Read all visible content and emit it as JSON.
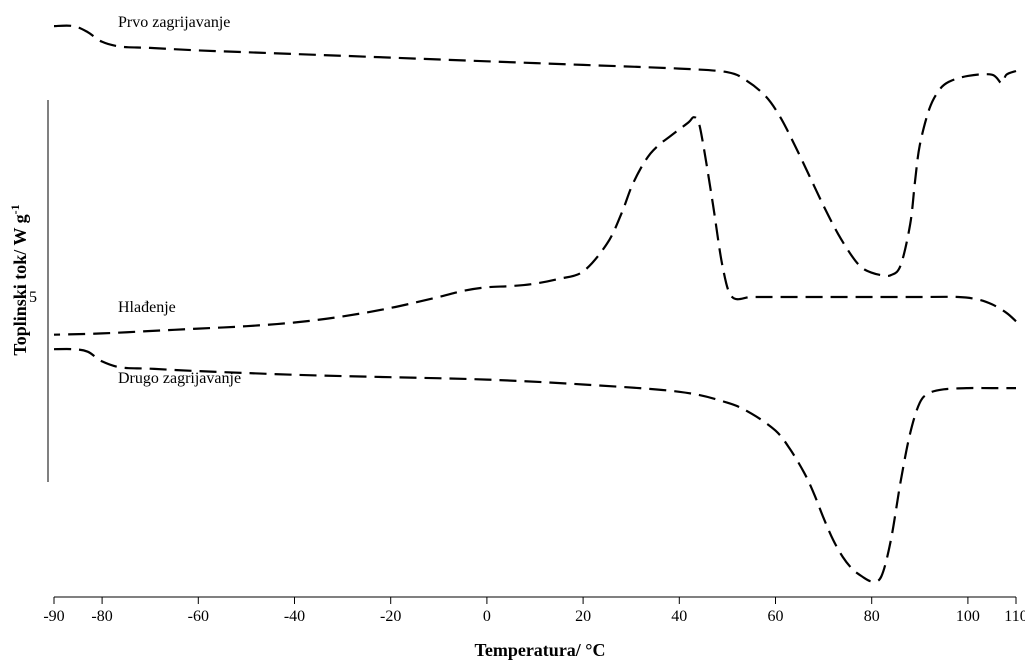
{
  "chart_data": {
    "type": "line",
    "xlabel": "Temperatura/ °C",
    "ylabel": "Toplinski tok/ W g",
    "ylabel_superscript": "-1",
    "xlim": [
      -90,
      110
    ],
    "xticks": [
      -90,
      -80,
      -60,
      -40,
      -20,
      0,
      20,
      40,
      60,
      80,
      100,
      110
    ],
    "scale_bar_label": "5",
    "line_style": "dashed",
    "series": [
      {
        "name": "Prvo zagrijavanje",
        "x": [
          -90,
          -86,
          -83,
          -80,
          -76,
          -70,
          -60,
          -40,
          -20,
          0,
          20,
          40,
          50,
          54,
          58,
          61,
          64,
          67,
          70,
          73,
          76,
          78,
          80,
          82,
          84,
          86,
          88,
          89,
          90,
          92,
          94,
          96,
          100,
          105,
          107,
          108,
          110
        ],
        "y": [
          22.3,
          22.3,
          21.8,
          21.0,
          20.6,
          20.5,
          20.3,
          20.0,
          19.7,
          19.4,
          19.1,
          18.8,
          18.5,
          17.8,
          16.5,
          14.8,
          12.5,
          10.0,
          7.5,
          5.2,
          3.3,
          2.4,
          2.0,
          1.8,
          1.8,
          2.6,
          6.0,
          9.5,
          12.5,
          15.5,
          17.0,
          17.7,
          18.2,
          18.3,
          17.6,
          18.3,
          18.6
        ]
      },
      {
        "name": "Hlađenje",
        "x": [
          110,
          108,
          105,
          102,
          98,
          90,
          80,
          70,
          60,
          55,
          51,
          49,
          47,
          45,
          44,
          43,
          42,
          40,
          38,
          36,
          34,
          32,
          30,
          28,
          25,
          20,
          15,
          10,
          5,
          0,
          -5,
          -10,
          -20,
          -30,
          -40,
          -50,
          -60,
          -70,
          -80,
          -90
        ],
        "y": [
          -2.0,
          -1.3,
          -0.6,
          -0.2,
          0,
          0,
          0,
          0,
          0,
          0,
          0,
          2.5,
          7.6,
          12.5,
          14.4,
          14.8,
          14.4,
          13.8,
          13.2,
          12.6,
          11.8,
          10.6,
          9.0,
          6.9,
          4.4,
          2.1,
          1.5,
          1.1,
          0.9,
          0.8,
          0.5,
          0,
          -0.9,
          -1.6,
          -2.1,
          -2.4,
          -2.6,
          -2.8,
          -3.0,
          -3.1
        ]
      },
      {
        "name": "Drugo zagrijavanje",
        "x": [
          -90,
          -86,
          -83,
          -80,
          -76,
          -70,
          -60,
          -40,
          -20,
          0,
          20,
          40,
          50,
          55,
          60,
          63,
          66,
          68,
          70,
          72,
          74,
          76,
          78,
          80,
          82,
          84,
          86,
          88,
          90,
          92,
          95,
          100,
          105,
          110
        ],
        "y": [
          -4.3,
          -4.3,
          -4.5,
          -5.3,
          -5.8,
          -5.9,
          -6.1,
          -6.4,
          -6.6,
          -6.8,
          -7.2,
          -7.8,
          -8.7,
          -9.6,
          -11.0,
          -12.5,
          -14.5,
          -16.2,
          -18.2,
          -20.0,
          -21.4,
          -22.4,
          -23.0,
          -23.4,
          -23.0,
          -20.0,
          -15.2,
          -11.2,
          -8.7,
          -7.9,
          -7.6,
          -7.5,
          -7.5,
          -7.5
        ]
      }
    ]
  }
}
